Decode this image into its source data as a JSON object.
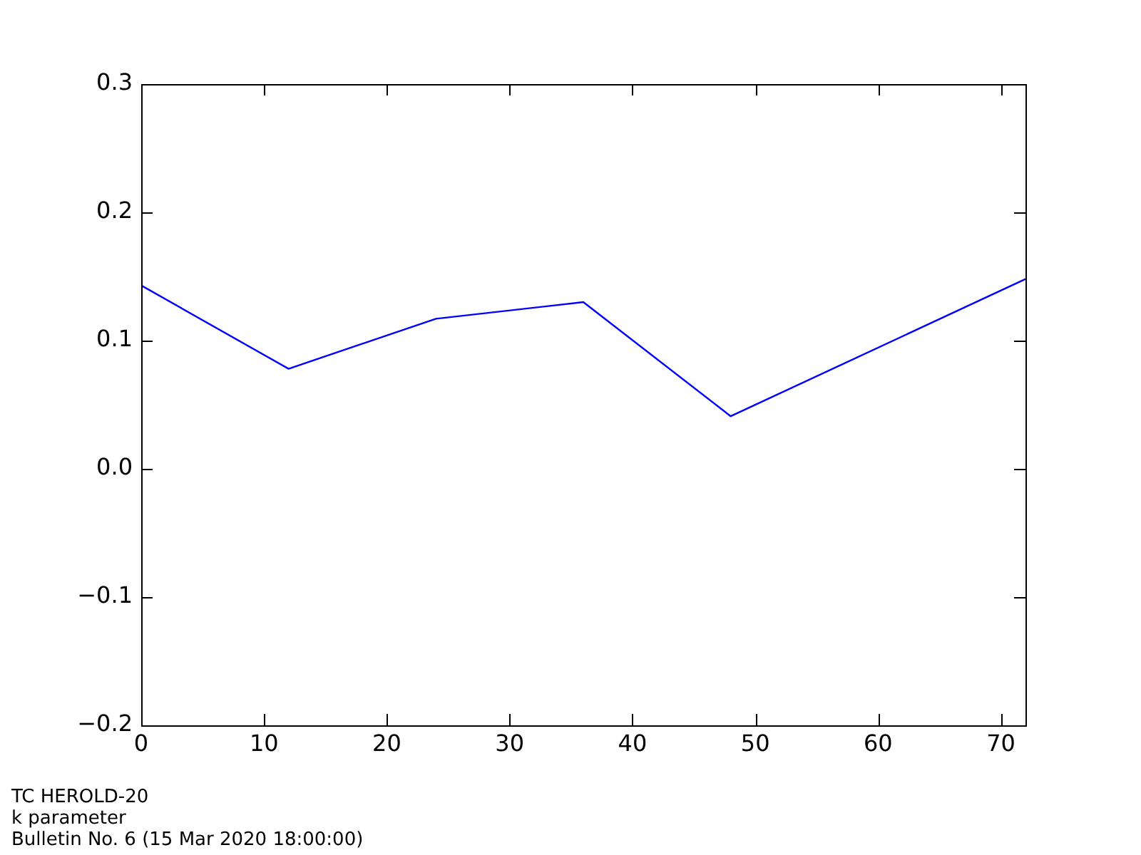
{
  "chart_data": {
    "type": "line",
    "x": [
      0,
      12,
      24,
      36,
      48,
      72
    ],
    "series": [
      {
        "color": "#0000ff",
        "values": [
          0.143,
          0.078,
          0.117,
          0.13,
          0.041,
          0.148
        ]
      }
    ],
    "xlim": [
      0,
      72
    ],
    "xticks": [
      0,
      10,
      20,
      30,
      40,
      50,
      60,
      70
    ],
    "ylim": [
      -0.2,
      0.3
    ],
    "yticks": [
      {
        "value": -0.2,
        "label": "−0.2"
      },
      {
        "value": -0.1,
        "label": "−0.1"
      },
      {
        "value": 0,
        "label": "0.0"
      },
      0.1,
      0.2,
      0.3
    ],
    "grid": false,
    "legend": false,
    "marker": "none",
    "line_style": "solid",
    "annotations": [
      "TC HEROLD-20",
      "k parameter",
      "Bulletin No. 6 (15 Mar 2020  18:00:00)"
    ]
  }
}
